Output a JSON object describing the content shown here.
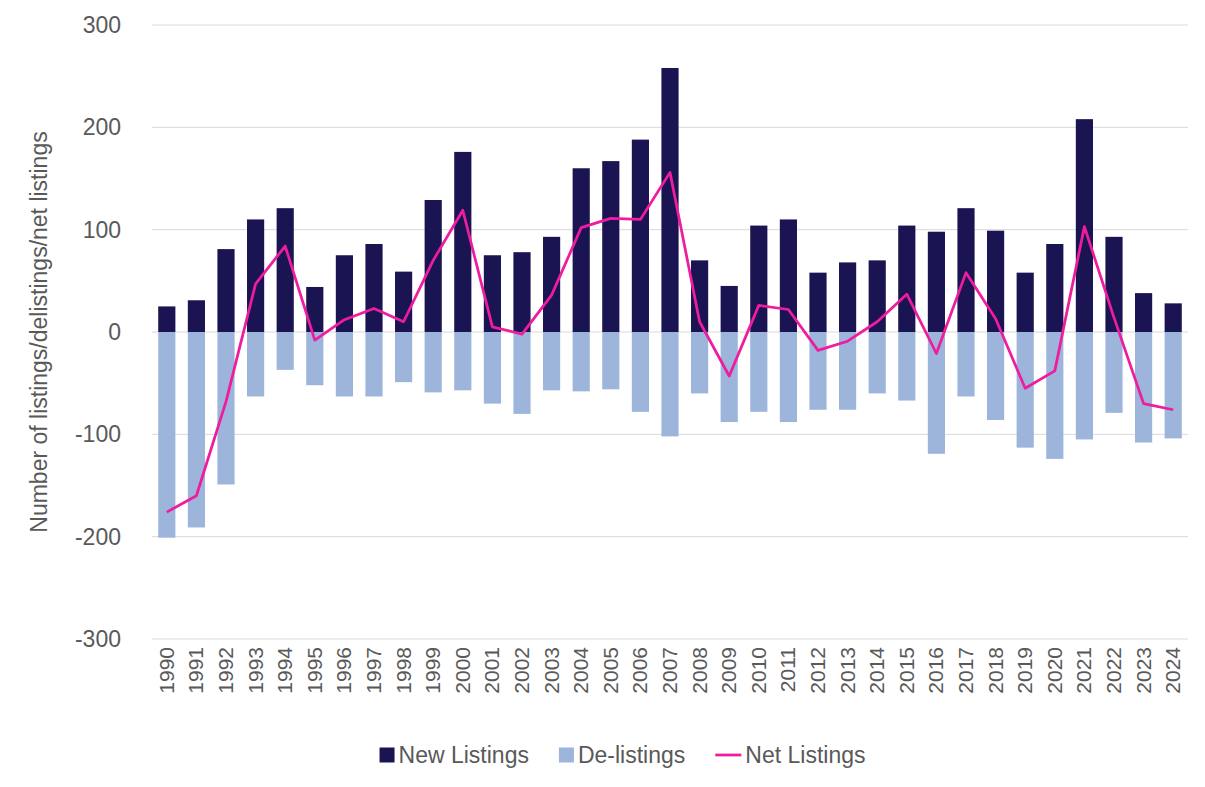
{
  "chart_data": {
    "type": "bar",
    "y_label": "Number of listings/delistings/net listings",
    "categories": [
      "1990",
      "1991",
      "1992",
      "1993",
      "1994",
      "1995",
      "1996",
      "1997",
      "1998",
      "1999",
      "2000",
      "2001",
      "2002",
      "2003",
      "2004",
      "2005",
      "2006",
      "2007",
      "2008",
      "2009",
      "2010",
      "2011",
      "2012",
      "2013",
      "2014",
      "2015",
      "2016",
      "2017",
      "2018",
      "2019",
      "2020",
      "2021",
      "2022",
      "2023",
      "2024"
    ],
    "series": [
      {
        "name": "New Listings",
        "type": "bar",
        "color": "#1b1452",
        "values": [
          25,
          31,
          81,
          110,
          121,
          44,
          75,
          86,
          59,
          129,
          176,
          75,
          78,
          93,
          160,
          167,
          188,
          258,
          70,
          45,
          104,
          110,
          58,
          68,
          70,
          104,
          98,
          121,
          99,
          58,
          86,
          208,
          93,
          38,
          28
        ]
      },
      {
        "name": "De-listings",
        "type": "bar",
        "color": "#9db5db",
        "values": [
          -201,
          -191,
          -149,
          -63,
          -37,
          -52,
          -63,
          -63,
          -49,
          -59,
          -57,
          -70,
          -80,
          -57,
          -58,
          -56,
          -78,
          -102,
          -60,
          -88,
          -78,
          -88,
          -76,
          -76,
          -60,
          -67,
          -119,
          -63,
          -86,
          -113,
          -124,
          -105,
          -79,
          -108,
          -104
        ]
      },
      {
        "name": "Net Listings",
        "type": "line",
        "color": "#ee1c9e",
        "values": [
          -176,
          -160,
          -68,
          47,
          84,
          -8,
          12,
          23,
          10,
          70,
          119,
          5,
          -2,
          36,
          102,
          111,
          110,
          156,
          10,
          -43,
          26,
          22,
          -18,
          -9,
          10,
          37,
          -21,
          58,
          13,
          -55,
          -38,
          103,
          14,
          -70,
          -76
        ]
      }
    ],
    "stacked": true,
    "ylim": [
      -300,
      300
    ],
    "yticks": [
      -300,
      -200,
      -100,
      0,
      100,
      200,
      300
    ],
    "grid": true,
    "legend": "bottom"
  }
}
